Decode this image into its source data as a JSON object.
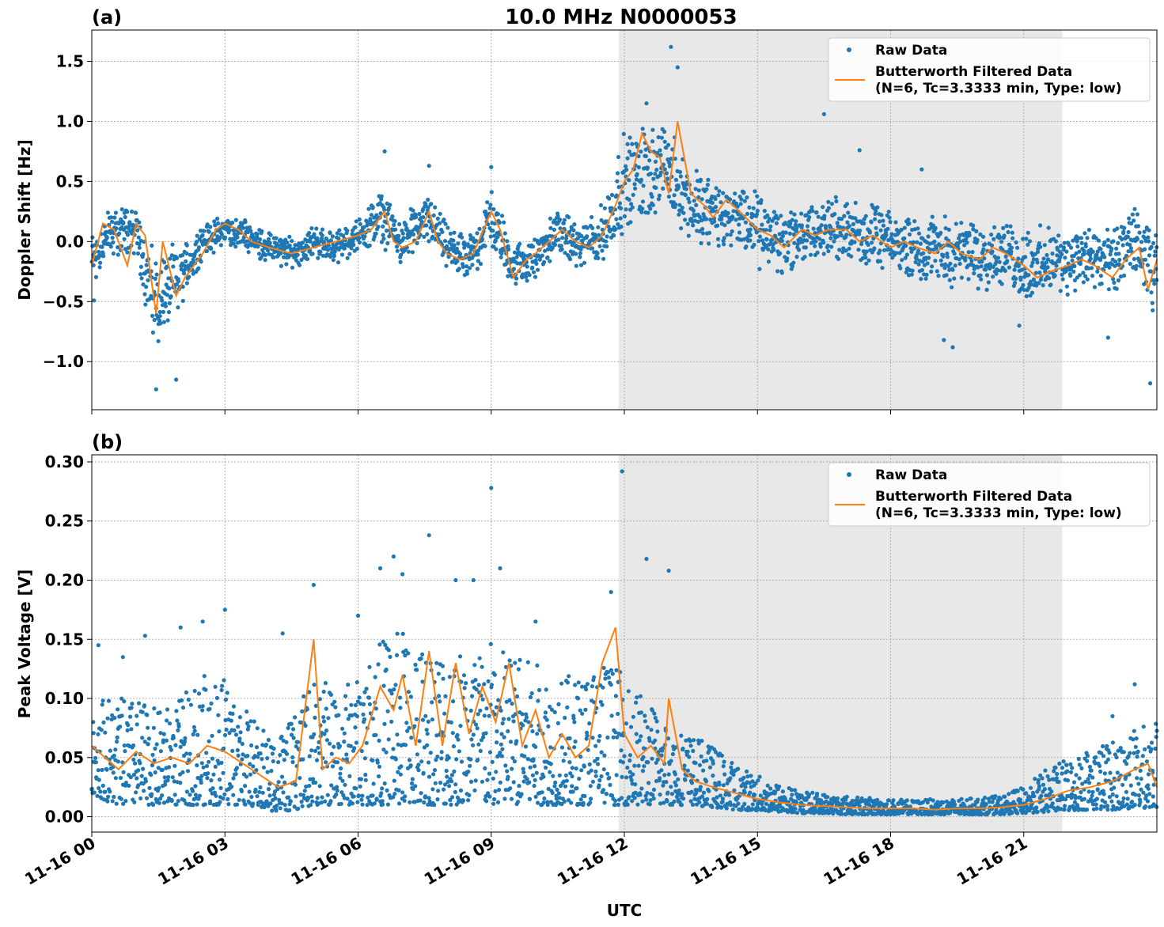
{
  "figure": {
    "title": "10.0 MHz N0000053",
    "xlabel": "UTC"
  },
  "chart_data": [
    {
      "type": "scatter",
      "panel_label": "(a)",
      "ylabel": "Doppler Shift [Hz]",
      "x_domain_hours": [
        0,
        24
      ],
      "ylim": [
        -1.4,
        1.76
      ],
      "y_ticks": [
        -1.0,
        -0.5,
        0.0,
        0.5,
        1.0,
        1.5
      ],
      "y_tick_labels": [
        "−1.0",
        "−0.5",
        "0.0",
        "0.5",
        "1.0",
        "1.5"
      ],
      "x_ticks_hours": [
        0,
        3,
        6,
        9,
        12,
        15,
        18,
        21
      ],
      "x_tick_labels": [
        "11-16 00",
        "11-16 03",
        "11-16 06",
        "11-16 09",
        "11-16 12",
        "11-16 15",
        "11-16 18",
        "11-16 21"
      ],
      "grid": true,
      "shaded_region_hours": [
        11.87,
        21.87
      ],
      "legend": {
        "location": "upper right",
        "entries": [
          {
            "label": "Raw Data"
          },
          {
            "label": "Butterworth Filtered Data",
            "label_line2": "(N=6, Tc=3.3333 min, Type: low)"
          }
        ]
      },
      "series": [
        {
          "name": "Raw Data",
          "color": "#1f77b4",
          "kind": "points",
          "band_x": [
            0,
            0.5,
            1.0,
            1.4,
            1.9,
            2.5,
            3.0,
            3.5,
            4.0,
            4.5,
            5.0,
            5.5,
            6.0,
            6.5,
            7.0,
            7.6,
            8.0,
            8.5,
            9.0,
            9.5,
            10.0,
            10.5,
            11.0,
            11.5,
            12.0,
            12.5,
            13.0,
            13.5,
            14.0,
            14.5,
            15.0,
            15.5,
            16.0,
            16.5,
            17.0,
            17.5,
            18.0,
            18.5,
            19.0,
            19.5,
            20.0,
            20.5,
            21.0,
            21.5,
            22.0,
            22.5,
            23.0,
            23.5,
            24.0
          ],
          "band_center": [
            -0.15,
            0.1,
            0.1,
            -0.5,
            -0.35,
            0.0,
            0.1,
            0.05,
            -0.05,
            -0.1,
            0.0,
            -0.05,
            0.05,
            0.2,
            0.0,
            0.2,
            -0.05,
            -0.15,
            0.2,
            -0.2,
            -0.15,
            0.1,
            -0.05,
            0.05,
            0.5,
            0.6,
            0.6,
            0.3,
            0.25,
            0.2,
            0.1,
            0.0,
            0.05,
            0.1,
            0.1,
            0.05,
            0.0,
            -0.05,
            -0.05,
            -0.1,
            -0.1,
            -0.1,
            -0.2,
            -0.2,
            -0.15,
            -0.15,
            -0.2,
            0.0,
            -0.3
          ],
          "band_halfwidth": [
            0.3,
            0.25,
            0.25,
            0.45,
            0.35,
            0.15,
            0.15,
            0.15,
            0.15,
            0.15,
            0.15,
            0.15,
            0.15,
            0.25,
            0.2,
            0.25,
            0.2,
            0.2,
            0.3,
            0.2,
            0.2,
            0.2,
            0.2,
            0.3,
            0.45,
            0.45,
            0.45,
            0.35,
            0.35,
            0.3,
            0.35,
            0.35,
            0.3,
            0.3,
            0.3,
            0.3,
            0.25,
            0.3,
            0.3,
            0.3,
            0.35,
            0.3,
            0.35,
            0.35,
            0.3,
            0.3,
            0.35,
            0.3,
            0.4
          ],
          "outliers": [
            [
              1.45,
              -1.23
            ],
            [
              1.9,
              -1.15
            ],
            [
              0.05,
              -0.49
            ],
            [
              6.6,
              0.75
            ],
            [
              7.6,
              0.63
            ],
            [
              9.0,
              0.62
            ],
            [
              12.5,
              1.15
            ],
            [
              13.05,
              1.62
            ],
            [
              13.2,
              1.45
            ],
            [
              16.5,
              1.06
            ],
            [
              17.3,
              0.76
            ],
            [
              18.7,
              0.6
            ],
            [
              19.4,
              -0.88
            ],
            [
              19.2,
              -0.82
            ],
            [
              20.9,
              -0.7
            ],
            [
              22.9,
              -0.8
            ],
            [
              23.85,
              -1.18
            ],
            [
              23.5,
              0.27
            ]
          ]
        },
        {
          "name": "Butterworth Filtered Data",
          "color": "#ff7f0e",
          "kind": "line",
          "x": [
            0,
            0.25,
            0.5,
            0.8,
            1.0,
            1.2,
            1.45,
            1.6,
            1.9,
            2.1,
            2.5,
            2.8,
            3.0,
            3.3,
            3.6,
            4.0,
            4.5,
            5.0,
            5.5,
            6.0,
            6.3,
            6.6,
            6.8,
            7.0,
            7.3,
            7.6,
            7.8,
            8.0,
            8.3,
            8.6,
            9.0,
            9.2,
            9.5,
            9.8,
            10.0,
            10.3,
            10.6,
            10.9,
            11.2,
            11.5,
            11.8,
            12.0,
            12.2,
            12.4,
            12.6,
            12.8,
            13.0,
            13.2,
            13.5,
            13.8,
            14.0,
            14.3,
            14.6,
            15.0,
            15.3,
            15.6,
            16.0,
            16.3,
            16.6,
            17.0,
            17.3,
            17.6,
            18.0,
            18.3,
            18.6,
            19.0,
            19.3,
            19.6,
            20.0,
            20.3,
            20.6,
            21.0,
            21.3,
            21.6,
            22.0,
            22.3,
            22.6,
            23.0,
            23.3,
            23.6,
            23.8,
            24.0
          ],
          "y": [
            -0.2,
            0.15,
            0.1,
            -0.2,
            0.15,
            0.05,
            -0.6,
            0.0,
            -0.45,
            -0.3,
            -0.1,
            0.1,
            0.15,
            0.1,
            0.0,
            -0.05,
            -0.1,
            -0.05,
            0.0,
            0.05,
            0.1,
            0.25,
            0.0,
            -0.05,
            0.0,
            0.25,
            0.0,
            -0.1,
            -0.15,
            -0.1,
            0.25,
            0.1,
            -0.3,
            -0.15,
            -0.1,
            0.0,
            0.1,
            0.0,
            -0.05,
            0.05,
            0.3,
            0.5,
            0.6,
            0.9,
            0.75,
            0.7,
            0.4,
            1.0,
            0.4,
            0.3,
            0.2,
            0.35,
            0.25,
            0.1,
            0.05,
            -0.05,
            0.1,
            0.05,
            0.1,
            0.1,
            0.0,
            0.05,
            -0.05,
            0.0,
            -0.05,
            -0.1,
            0.0,
            -0.1,
            -0.15,
            -0.05,
            -0.1,
            -0.2,
            -0.3,
            -0.25,
            -0.2,
            -0.15,
            -0.2,
            -0.3,
            -0.15,
            -0.05,
            -0.4,
            -0.15
          ]
        }
      ]
    },
    {
      "type": "scatter",
      "panel_label": "(b)",
      "ylabel": "Peak Voltage [V]",
      "x_domain_hours": [
        0,
        24
      ],
      "ylim": [
        -0.013,
        0.306
      ],
      "y_ticks": [
        0.0,
        0.05,
        0.1,
        0.15,
        0.2,
        0.25,
        0.3
      ],
      "y_tick_labels": [
        "0.00",
        "0.05",
        "0.10",
        "0.15",
        "0.20",
        "0.25",
        "0.30"
      ],
      "x_ticks_hours": [
        0,
        3,
        6,
        9,
        12,
        15,
        18,
        21
      ],
      "x_tick_labels": [
        "11-16 00",
        "11-16 03",
        "11-16 06",
        "11-16 09",
        "11-16 12",
        "11-16 15",
        "11-16 18",
        "11-16 21"
      ],
      "grid": true,
      "shaded_region_hours": [
        11.87,
        21.87
      ],
      "legend": {
        "location": "upper right",
        "entries": [
          {
            "label": "Raw Data"
          },
          {
            "label": "Butterworth Filtered Data",
            "label_line2": "(N=6, Tc=3.3333 min, Type: low)"
          }
        ]
      },
      "series": [
        {
          "name": "Raw Data",
          "color": "#1f77b4",
          "kind": "points",
          "band_x": [
            0,
            0.5,
            1.0,
            1.5,
            2.0,
            2.5,
            3.0,
            3.5,
            4.0,
            4.5,
            5.0,
            5.5,
            6.0,
            6.5,
            7.0,
            7.5,
            8.0,
            8.5,
            9.0,
            9.5,
            10.0,
            10.5,
            11.0,
            11.5,
            12.0,
            12.5,
            13.0,
            13.5,
            14.0,
            14.5,
            15.0,
            15.5,
            16.0,
            16.5,
            17.0,
            17.5,
            18.0,
            18.5,
            19.0,
            19.5,
            20.0,
            20.5,
            21.0,
            21.5,
            22.0,
            22.5,
            23.0,
            23.5,
            24.0
          ],
          "band_low": [
            0.02,
            0.01,
            0.01,
            0.01,
            0.01,
            0.01,
            0.01,
            0.01,
            0.005,
            0.005,
            0.01,
            0.01,
            0.01,
            0.01,
            0.01,
            0.01,
            0.01,
            0.01,
            0.01,
            0.01,
            0.01,
            0.01,
            0.01,
            0.01,
            0.01,
            0.01,
            0.01,
            0.01,
            0.008,
            0.006,
            0.005,
            0.004,
            0.003,
            0.003,
            0.002,
            0.002,
            0.002,
            0.002,
            0.002,
            0.002,
            0.002,
            0.002,
            0.003,
            0.004,
            0.005,
            0.006,
            0.006,
            0.007,
            0.008
          ],
          "band_high": [
            0.11,
            0.1,
            0.1,
            0.09,
            0.1,
            0.12,
            0.12,
            0.09,
            0.07,
            0.08,
            0.12,
            0.11,
            0.12,
            0.15,
            0.16,
            0.15,
            0.15,
            0.14,
            0.15,
            0.14,
            0.13,
            0.12,
            0.12,
            0.14,
            0.12,
            0.1,
            0.08,
            0.07,
            0.06,
            0.045,
            0.035,
            0.028,
            0.022,
            0.02,
            0.018,
            0.016,
            0.015,
            0.014,
            0.015,
            0.015,
            0.016,
            0.018,
            0.025,
            0.04,
            0.05,
            0.06,
            0.065,
            0.075,
            0.08
          ],
          "outliers": [
            [
              0.15,
              0.145
            ],
            [
              0.7,
              0.135
            ],
            [
              1.2,
              0.153
            ],
            [
              2.0,
              0.16
            ],
            [
              2.5,
              0.165
            ],
            [
              3.0,
              0.175
            ],
            [
              4.3,
              0.155
            ],
            [
              5.0,
              0.196
            ],
            [
              6.0,
              0.17
            ],
            [
              6.5,
              0.21
            ],
            [
              6.8,
              0.22
            ],
            [
              7.0,
              0.205
            ],
            [
              7.6,
              0.238
            ],
            [
              8.2,
              0.2
            ],
            [
              8.6,
              0.2
            ],
            [
              9.0,
              0.278
            ],
            [
              9.2,
              0.21
            ],
            [
              10.0,
              0.165
            ],
            [
              11.7,
              0.19
            ],
            [
              11.95,
              0.292
            ],
            [
              12.5,
              0.218
            ],
            [
              13.0,
              0.208
            ],
            [
              13.5,
              0.06
            ],
            [
              14.0,
              0.045
            ],
            [
              23.0,
              0.085
            ],
            [
              23.5,
              0.112
            ]
          ]
        },
        {
          "name": "Butterworth Filtered Data",
          "color": "#ff7f0e",
          "kind": "line",
          "x": [
            0,
            0.3,
            0.6,
            1.0,
            1.4,
            1.8,
            2.2,
            2.6,
            3.0,
            3.4,
            3.8,
            4.2,
            4.6,
            5.0,
            5.2,
            5.5,
            5.8,
            6.1,
            6.5,
            6.8,
            7.0,
            7.3,
            7.6,
            7.9,
            8.2,
            8.5,
            8.8,
            9.1,
            9.4,
            9.7,
            10.0,
            10.3,
            10.6,
            10.9,
            11.2,
            11.5,
            11.8,
            12.0,
            12.3,
            12.6,
            12.9,
            13.0,
            13.3,
            13.6,
            14.0,
            14.5,
            15.0,
            15.5,
            16.0,
            16.5,
            17.0,
            17.5,
            18.0,
            18.5,
            19.0,
            19.5,
            20.0,
            20.5,
            21.0,
            21.5,
            22.0,
            22.5,
            23.0,
            23.5,
            23.8,
            24.0
          ],
          "y": [
            0.06,
            0.05,
            0.04,
            0.055,
            0.045,
            0.05,
            0.045,
            0.06,
            0.055,
            0.045,
            0.035,
            0.025,
            0.03,
            0.15,
            0.04,
            0.05,
            0.045,
            0.06,
            0.11,
            0.09,
            0.12,
            0.06,
            0.14,
            0.06,
            0.13,
            0.07,
            0.11,
            0.08,
            0.13,
            0.06,
            0.09,
            0.05,
            0.07,
            0.05,
            0.06,
            0.13,
            0.16,
            0.07,
            0.05,
            0.06,
            0.045,
            0.1,
            0.04,
            0.03,
            0.025,
            0.02,
            0.015,
            0.012,
            0.01,
            0.009,
            0.008,
            0.007,
            0.007,
            0.007,
            0.006,
            0.007,
            0.007,
            0.008,
            0.01,
            0.015,
            0.022,
            0.025,
            0.03,
            0.04,
            0.045,
            0.025
          ]
        }
      ]
    }
  ]
}
